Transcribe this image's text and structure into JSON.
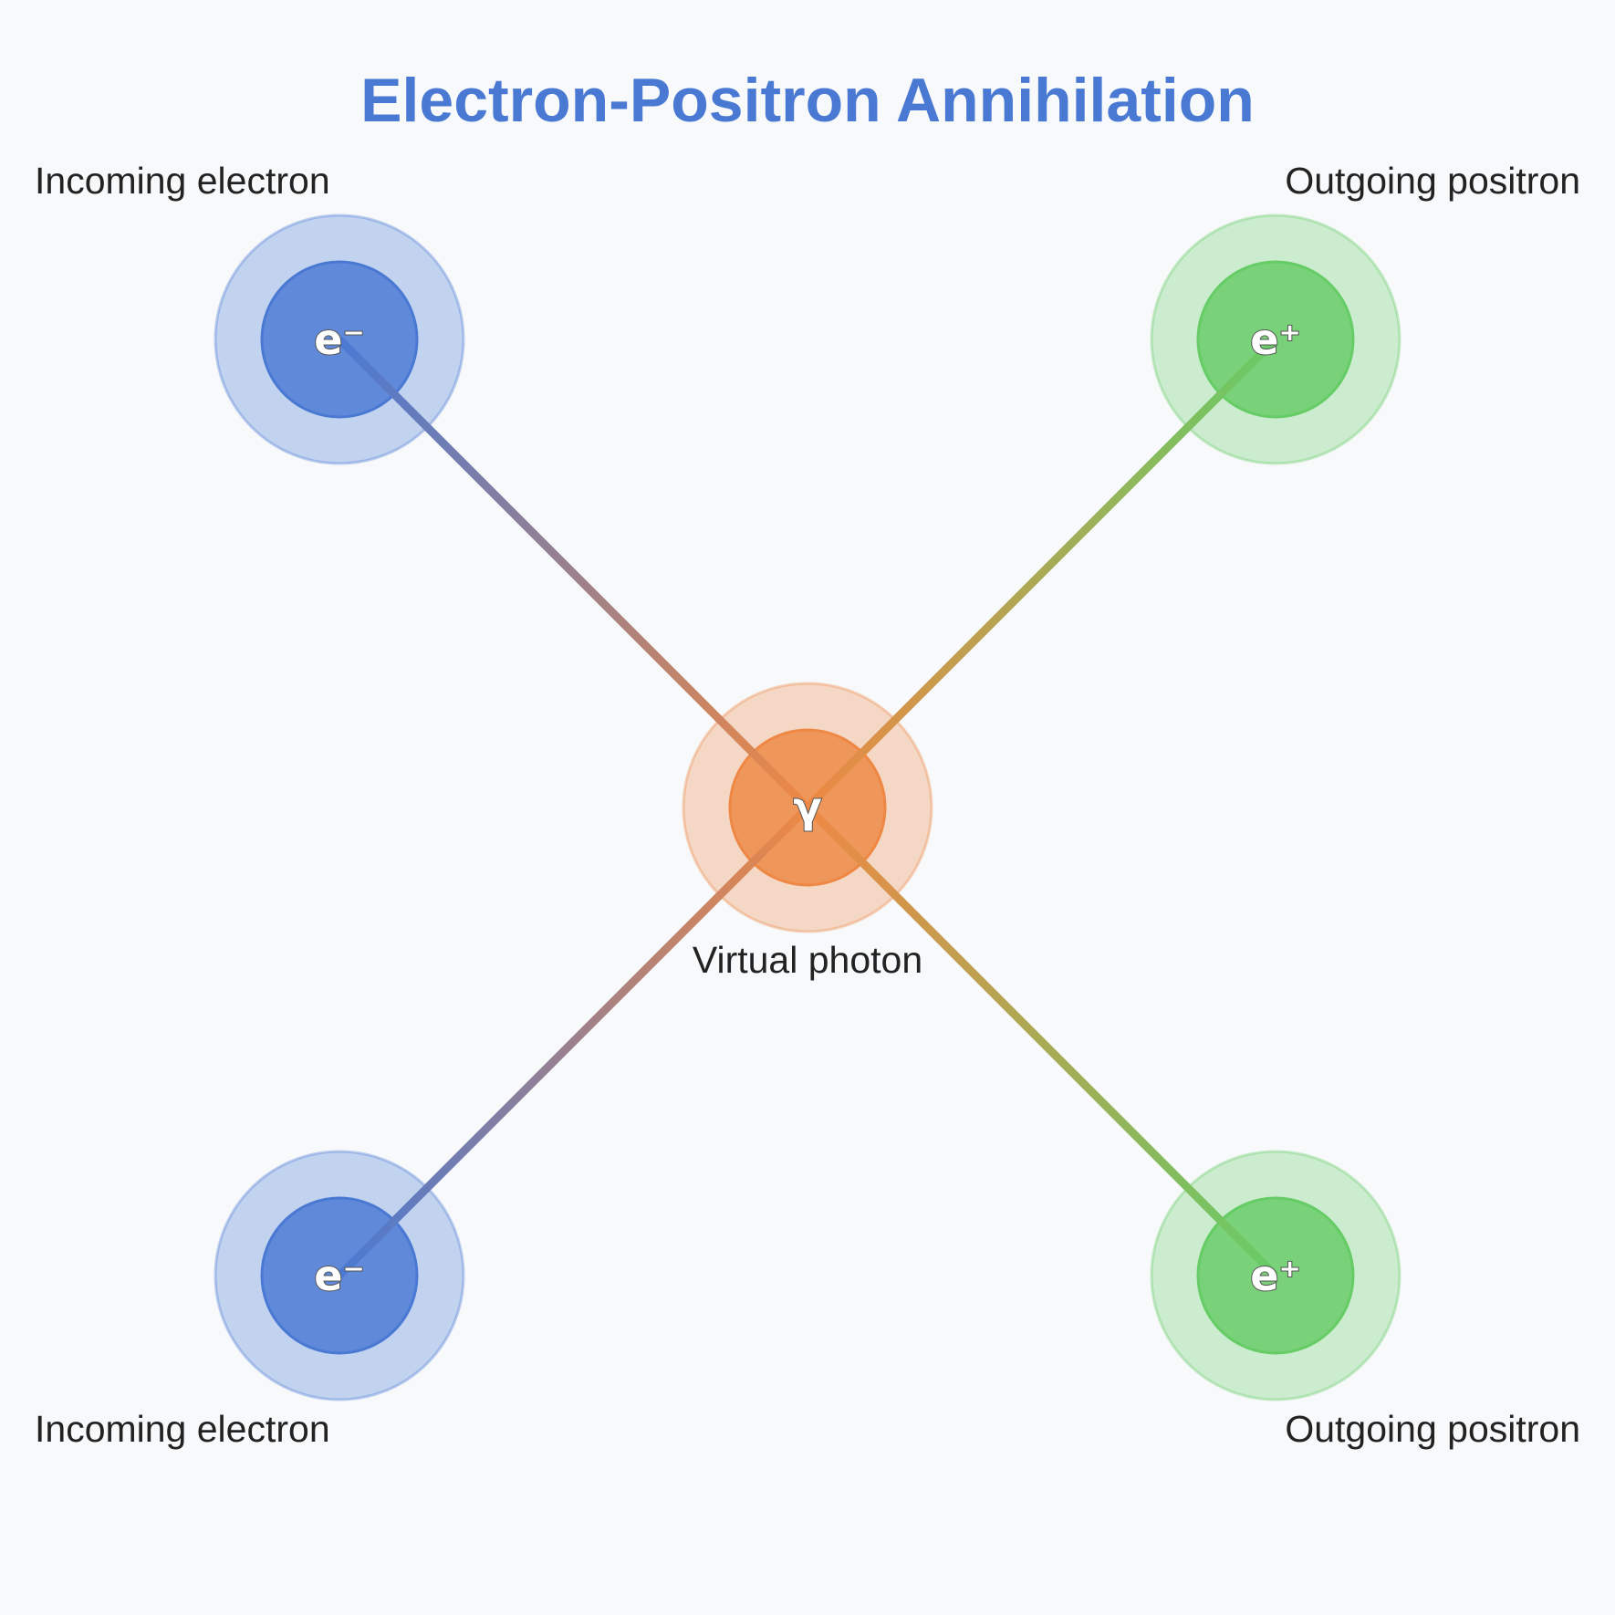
{
  "title": "Electron-Positron Annihilation",
  "colors": {
    "background": "#f7f9fb",
    "title": "#4a79d4",
    "electron": "#4a79d4",
    "positron": "#66cc66",
    "photon": "#ee8844"
  },
  "particles": {
    "electron_top": {
      "symbol": "e⁻",
      "label": "Incoming electron"
    },
    "electron_bottom": {
      "symbol": "e⁻",
      "label": "Incoming electron"
    },
    "positron_top": {
      "symbol": "e⁺",
      "label": "Outgoing positron"
    },
    "positron_bottom": {
      "symbol": "e⁺",
      "label": "Outgoing positron"
    },
    "photon": {
      "symbol": "γ",
      "label": "Virtual photon"
    }
  }
}
